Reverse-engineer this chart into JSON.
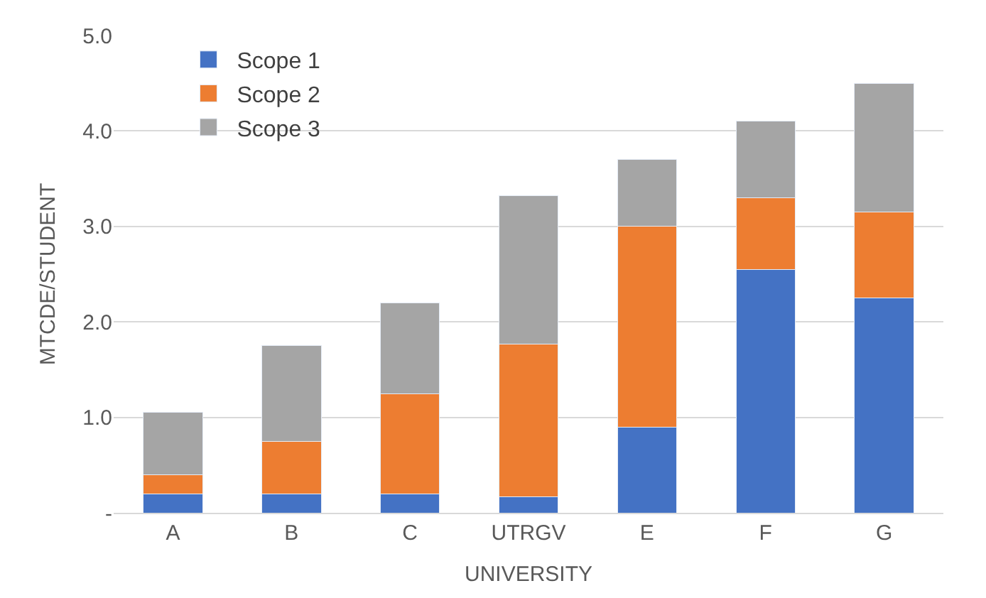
{
  "chart_data": {
    "type": "bar",
    "stacked": true,
    "xlabel": "UNIVERSITY",
    "ylabel": "MTCDE/STUDENT",
    "categories": [
      "A",
      "B",
      "C",
      "UTRGV",
      "E",
      "F",
      "G"
    ],
    "series": [
      {
        "name": "Scope 1",
        "color": "#4472c4",
        "values": [
          0.2,
          0.2,
          0.2,
          0.17,
          0.9,
          2.55,
          2.25
        ]
      },
      {
        "name": "Scope 2",
        "color": "#ed7d31",
        "values": [
          0.2,
          0.55,
          1.05,
          1.6,
          2.1,
          0.75,
          0.9
        ]
      },
      {
        "name": "Scope 3",
        "color": "#a5a5a5",
        "values": [
          0.65,
          1.0,
          0.95,
          1.55,
          0.7,
          0.8,
          1.35
        ]
      }
    ],
    "ylim": [
      0,
      5
    ],
    "yticks": [
      {
        "value": 0,
        "label": "-"
      },
      {
        "value": 1,
        "label": "1.0"
      },
      {
        "value": 2,
        "label": "2.0"
      },
      {
        "value": 3,
        "label": "3.0"
      },
      {
        "value": 4,
        "label": "4.0"
      },
      {
        "value": 5,
        "label": "5.0"
      }
    ],
    "grid": "y",
    "legend": "top left"
  }
}
